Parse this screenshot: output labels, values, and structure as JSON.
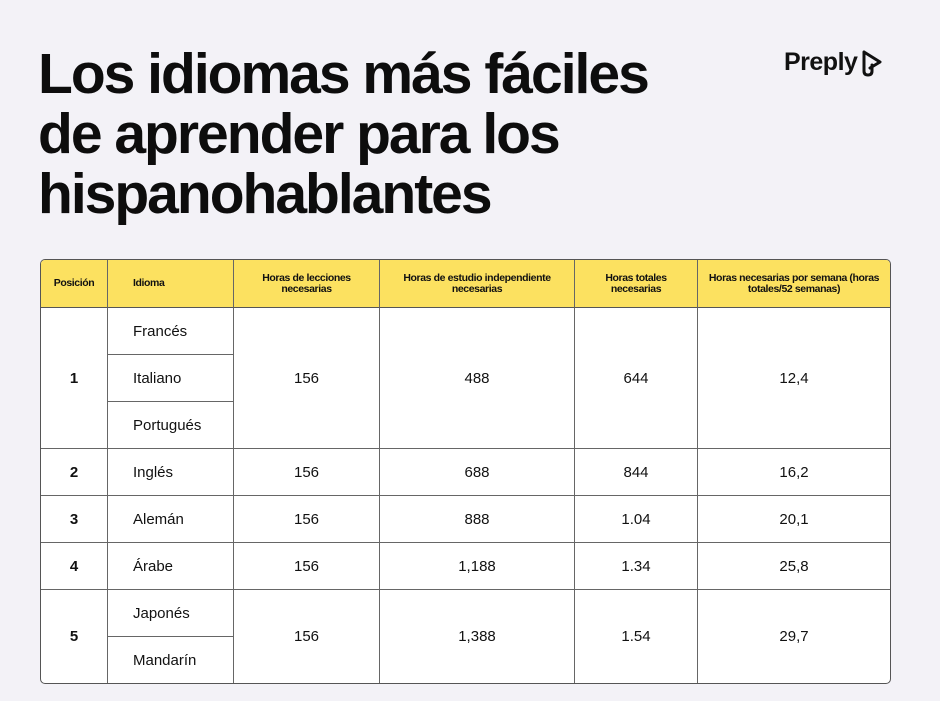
{
  "title": "Los idiomas más fáciles de aprender para los hispanohablantes",
  "title_lines": [
    "Los idiomas más fáciles",
    "de aprender para los",
    "hispanohablantes"
  ],
  "logo": {
    "text": "Preply",
    "icon": "preply-arrow-icon"
  },
  "colors": {
    "header": "#fce160",
    "background": "#f3f2f7"
  },
  "table": {
    "headers": [
      "Posición",
      "Idioma",
      "Horas de lecciones necesarias",
      "Horas de estudio independiente necesarias",
      "Horas totales necesarias",
      "Horas necesarias por semana (horas totales/52 semanas)"
    ],
    "rows": [
      {
        "pos": "1",
        "langs": [
          "Francés",
          "Italiano",
          "Portugués"
        ],
        "lessons": "156",
        "study": "488",
        "total": "644",
        "weekly": "12,4"
      },
      {
        "pos": "2",
        "langs": [
          "Inglés"
        ],
        "lessons": "156",
        "study": "688",
        "total": "844",
        "weekly": "16,2"
      },
      {
        "pos": "3",
        "langs": [
          "Alemán"
        ],
        "lessons": "156",
        "study": "888",
        "total": "1.04",
        "weekly": "20,1"
      },
      {
        "pos": "4",
        "langs": [
          "Árabe"
        ],
        "lessons": "156",
        "study": "1,188",
        "total": "1.34",
        "weekly": "25,8"
      },
      {
        "pos": "5",
        "langs": [
          "Japonés",
          "Mandarín"
        ],
        "lessons": "156",
        "study": "1,388",
        "total": "1.54",
        "weekly": "29,7"
      }
    ]
  }
}
